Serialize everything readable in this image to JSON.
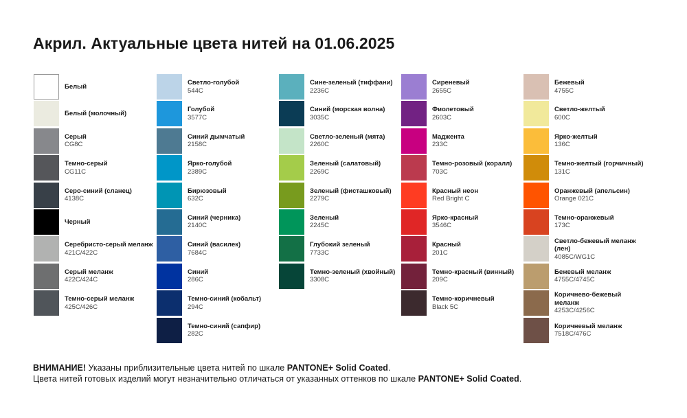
{
  "title": "Акрил. Актуальные цвета нитей на 01.06.2025",
  "columns": [
    [
      {
        "name": "Белый",
        "code": "",
        "color": "#ffffff"
      },
      {
        "name": "Белый (молочный)",
        "code": "",
        "color": "#ebebe0"
      },
      {
        "name": "Серый",
        "code": "CG8C",
        "color": "#87888c"
      },
      {
        "name": "Темно-серый",
        "code": "CG11C",
        "color": "#55565a"
      },
      {
        "name": "Серо-синий (сланец)",
        "code": "4138C",
        "color": "#384048"
      },
      {
        "name": "Черный",
        "code": "",
        "color": "#000000"
      },
      {
        "name": "Серебристо-серый меланж",
        "code": "421C/422C",
        "color": "#b1b2b1"
      },
      {
        "name": "Серый меланж",
        "code": "422C/424C",
        "color": "#6e6f70"
      },
      {
        "name": "Темно-серый меланж",
        "code": "425C/426C",
        "color": "#50555a"
      }
    ],
    [
      {
        "name": "Светло-голубой",
        "code": "544C",
        "color": "#bcd4e8"
      },
      {
        "name": "Голубой",
        "code": "3577C",
        "color": "#1e97dc"
      },
      {
        "name": "Синий дымчатый",
        "code": "2158C",
        "color": "#4e7a92"
      },
      {
        "name": "Ярко-голубой",
        "code": "2389C",
        "color": "#0096c8"
      },
      {
        "name": "Бирюзовый",
        "code": "632C",
        "color": "#0095b4"
      },
      {
        "name": "Синий (черника)",
        "code": "2140C",
        "color": "#256c93"
      },
      {
        "name": "Синий (василек)",
        "code": "7684C",
        "color": "#2e5fa3"
      },
      {
        "name": "Синий",
        "code": "286C",
        "color": "#0033a0"
      },
      {
        "name": "Темно-синий (кобальт)",
        "code": "294C",
        "color": "#0c2f6e"
      },
      {
        "name": "Темно-синий (сапфир)",
        "code": "282C",
        "color": "#0e1f45"
      }
    ],
    [
      {
        "name": "Сине-зеленый (тиффани)",
        "code": "2236C",
        "color": "#5bb0bd"
      },
      {
        "name": "Синий (морская волна)",
        "code": "3035C",
        "color": "#0b3c55"
      },
      {
        "name": "Светло-зеленый (мята)",
        "code": "2260C",
        "color": "#c4e4c8"
      },
      {
        "name": "Зеленый (салатовый)",
        "code": "2269C",
        "color": "#a4cc4a"
      },
      {
        "name": "Зеленый (фисташковый)",
        "code": "2279C",
        "color": "#789b1e"
      },
      {
        "name": "Зеленый",
        "code": "2245C",
        "color": "#00955a"
      },
      {
        "name": "Глубокий зеленый",
        "code": "7733C",
        "color": "#137046"
      },
      {
        "name": "Темно-зеленый (хвойный)",
        "code": "3308C",
        "color": "#064538"
      }
    ],
    [
      {
        "name": "Сиреневый",
        "code": "2655C",
        "color": "#9b7ed2"
      },
      {
        "name": "Фиолетовый",
        "code": "2603C",
        "color": "#722283"
      },
      {
        "name": "Маджента",
        "code": "233C",
        "color": "#c80080"
      },
      {
        "name": "Темно-розовый (коралл)",
        "code": "703C",
        "color": "#bb3a4e"
      },
      {
        "name": "Красный неон",
        "code": "Red Bright C",
        "color": "#ff3c22"
      },
      {
        "name": "Ярко-красный",
        "code": "3546C",
        "color": "#e02626"
      },
      {
        "name": "Красный",
        "code": "201C",
        "color": "#a8203a"
      },
      {
        "name": "Темно-красный (винный)",
        "code": "209C",
        "color": "#73213b"
      },
      {
        "name": "Темно-коричневый",
        "code": "Black 5C",
        "color": "#3c2a2e"
      }
    ],
    [
      {
        "name": "Бежевый",
        "code": "4755C",
        "color": "#d9c0b3"
      },
      {
        "name": "Светло-желтый",
        "code": "600C",
        "color": "#f1e99b"
      },
      {
        "name": "Ярко-желтый",
        "code": "136C",
        "color": "#fbbd3a"
      },
      {
        "name": "Темно-желтый (горчичный)",
        "code": "131C",
        "color": "#d08c0a"
      },
      {
        "name": "Оранжевый (апельсин)",
        "code": "Orange 021C",
        "color": "#ff5400"
      },
      {
        "name": "Темно-оранжевый",
        "code": "173C",
        "color": "#d84320"
      },
      {
        "name": "Светло-бежевый меланж (лен)",
        "code": "4085C/WG1C",
        "color": "#d4d0c8"
      },
      {
        "name": "Бежевый меланж",
        "code": "4755C/4745C",
        "color": "#bb9d6e"
      },
      {
        "name": "Коричнево-бежевый меланж",
        "code": "4253C/4256C",
        "color": "#8b6a4c"
      },
      {
        "name": "Коричневый меланж",
        "code": "7518C/476C",
        "color": "#6e5047"
      }
    ]
  ],
  "footer": {
    "warning_label": "ВНИМАНИЕ!",
    "line1_text": " Указаны приблизительные цвета нитей по шкале ",
    "line1_scale": "PANTONE+ Solid Coated",
    "line1_end": ".",
    "line2_text": "Цвета нитей готовых изделий могут незначительно отличаться от указанных оттенков по шкале ",
    "line2_scale": "PANTONE+ Solid Coated",
    "line2_end": "."
  }
}
